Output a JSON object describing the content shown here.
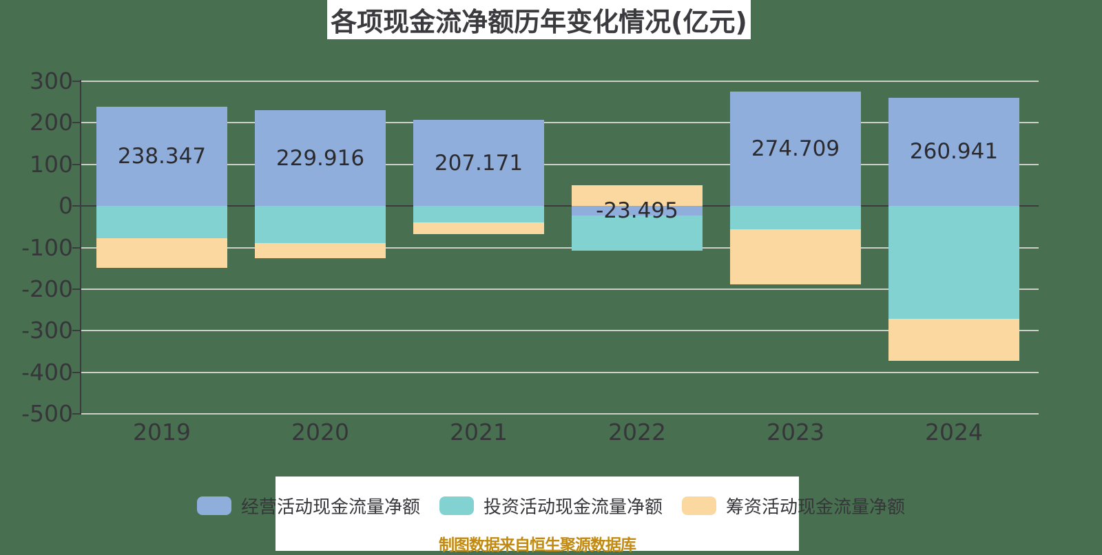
{
  "title": {
    "text": "各项现金流净额历年变化情况(亿元)"
  },
  "footer": {
    "text": "制图数据来自恒生聚源数据库"
  },
  "palette": {
    "page_bg": "#487050",
    "panel_bg": "#ffffff",
    "gridline": "#cfcfc9",
    "axis": "#3b3b3f",
    "text_dark": "#36363a",
    "bar_label_text": "#2b2b2f",
    "footer_text": "#c28a10"
  },
  "chart_data": {
    "type": "bar",
    "stacked": true,
    "title": "各项现金流净额历年变化情况(亿元)",
    "categories": [
      "2019",
      "2020",
      "2021",
      "2022",
      "2023",
      "2024"
    ],
    "series": [
      {
        "key": "operating",
        "name": "经营活动现金流量净额",
        "color": "#8faedc",
        "values": [
          238.347,
          229.916,
          207.171,
          -23.495,
          274.709,
          260.941
        ]
      },
      {
        "key": "investing",
        "name": "投资活动现金流量净额",
        "color": "#83d2d2",
        "values": [
          -78,
          -90,
          -40,
          -84.5,
          -56,
          -272
        ]
      },
      {
        "key": "financing",
        "name": "筹资活动现金流量净额",
        "color": "#fad89f",
        "values": [
          -71,
          -35,
          -27,
          50,
          -133,
          -101
        ]
      }
    ],
    "value_labels": [
      "238.347",
      "229.916",
      "207.171",
      "-23.495",
      "274.709",
      "260.941"
    ],
    "labeled_series": "operating",
    "ylim": [
      -500,
      300
    ],
    "yticks": [
      300,
      200,
      100,
      0,
      -100,
      -200,
      -300,
      -400,
      -500
    ],
    "xlabel": "",
    "ylabel": "",
    "grid": true,
    "legend_position": "bottom"
  }
}
